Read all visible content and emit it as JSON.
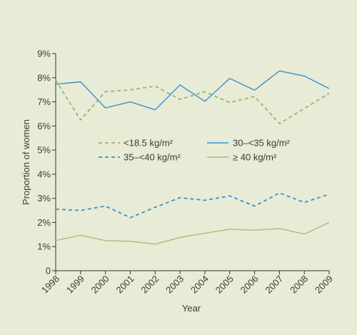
{
  "chart_data": {
    "type": "line",
    "title": "",
    "xlabel": "Year",
    "ylabel": "Proportion of women",
    "categories": [
      "1998",
      "1999",
      "2000",
      "2001",
      "2002",
      "2003",
      "2004",
      "2005",
      "2006",
      "2007",
      "2008",
      "2009"
    ],
    "yticks": [
      "0",
      "1%",
      "2%",
      "3%",
      "4%",
      "5%",
      "6%",
      "7%",
      "8%",
      "9%"
    ],
    "ylim": [
      0,
      9
    ],
    "grid": false,
    "legend_position": "middle",
    "series": [
      {
        "name": "<18.5 kg/m²",
        "color": "#9ab56a",
        "dash": "dashed",
        "values": [
          7.9,
          6.25,
          7.42,
          7.5,
          7.65,
          7.1,
          7.42,
          6.97,
          7.22,
          6.1,
          6.72,
          7.35
        ]
      },
      {
        "name": "30–<35 kg/m²",
        "color": "#3b8fd1",
        "dash": "solid",
        "values": [
          7.73,
          7.83,
          6.75,
          7.0,
          6.67,
          7.7,
          7.02,
          7.97,
          7.48,
          8.28,
          8.07,
          7.55
        ]
      },
      {
        "name": "35–<40 kg/m²",
        "color": "#3b8fd1",
        "dash": "dashed",
        "values": [
          2.55,
          2.5,
          2.68,
          2.2,
          2.63,
          3.03,
          2.92,
          3.1,
          2.68,
          3.22,
          2.83,
          3.17
        ]
      },
      {
        "name": "≥ 40 kg/m²",
        "color": "#a8bd7c",
        "dash": "solid",
        "values": [
          1.25,
          1.47,
          1.25,
          1.22,
          1.1,
          1.38,
          1.55,
          1.72,
          1.68,
          1.75,
          1.52,
          2.0
        ]
      }
    ]
  }
}
